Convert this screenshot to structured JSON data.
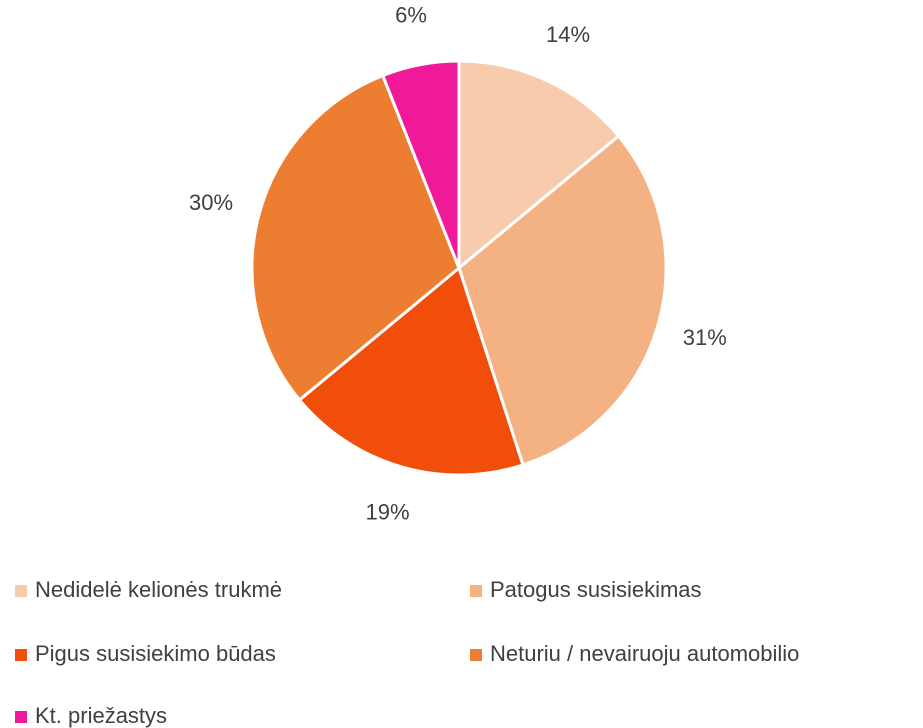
{
  "chart_data": {
    "type": "pie",
    "categories": [
      "Nedidelė kelionės trukmė",
      "Patogus susisiekimas",
      "Pigus susisiekimo būdas",
      "Neturiu / nevairuoju automobilio",
      "Kt. priežastys"
    ],
    "values": [
      14,
      31,
      19,
      30,
      6
    ],
    "value_labels": [
      "14%",
      "31%",
      "19%",
      "30%",
      "6%"
    ],
    "colors": [
      "#f8cbad",
      "#f4b183",
      "#f04e0a",
      "#ed7d31",
      "#f0199a"
    ],
    "legend": "bottom"
  }
}
